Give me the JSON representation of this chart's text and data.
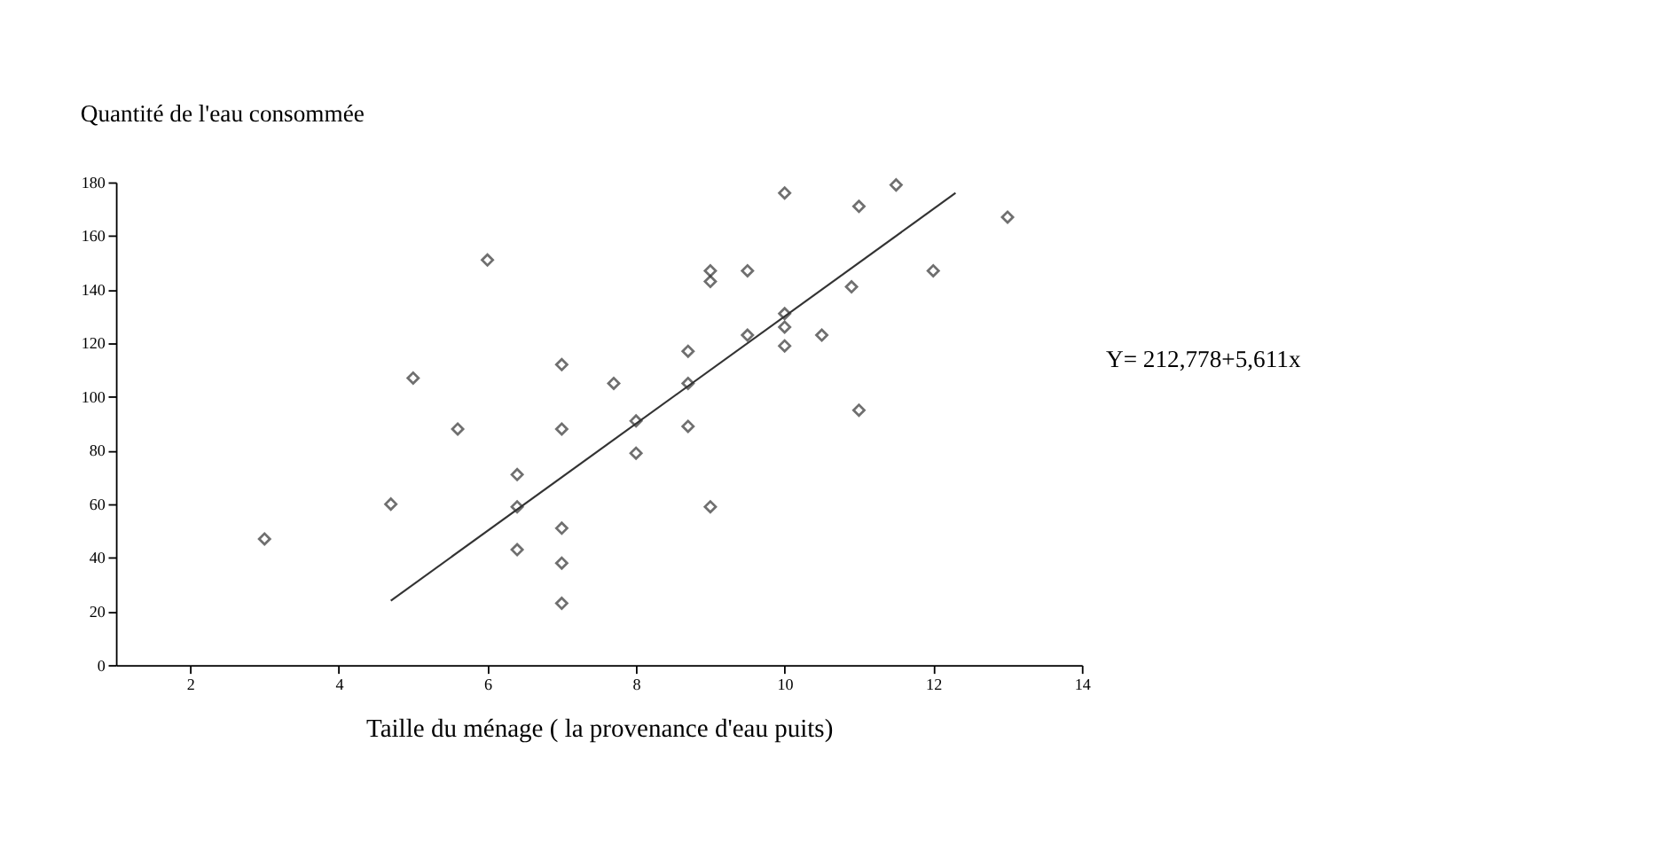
{
  "chart_data": {
    "type": "scatter",
    "title": "Quantité de l'eau consommée",
    "xlabel": "Taille du ménage ( la provenance d'eau puits)",
    "marker": "diamond",
    "grid": false,
    "xlim": [
      1,
      14
    ],
    "xticks": [
      2,
      4,
      6,
      8,
      10,
      12,
      14
    ],
    "ylim": [
      0,
      180
    ],
    "yticks": [
      0,
      20,
      40,
      60,
      80,
      100,
      120,
      140,
      160,
      180
    ],
    "series": [
      {
        "color": "#333333",
        "x": [
          3,
          4.7,
          5,
          5.6,
          6,
          6.4,
          6.4,
          6.4,
          7,
          7,
          7,
          7,
          7,
          7.7,
          8,
          8,
          8.7,
          8.7,
          8.7,
          9,
          9,
          9,
          9.5,
          9.5,
          10,
          10,
          10,
          10,
          10.5,
          10.9,
          11,
          11,
          11.5,
          12,
          13
        ],
        "values": [
          47,
          60,
          107,
          88,
          151,
          71,
          59,
          43,
          112,
          88,
          51,
          38,
          23,
          105,
          91,
          79,
          117,
          105,
          89,
          147,
          143,
          59,
          147,
          123,
          176,
          131,
          126,
          119,
          123,
          141,
          171,
          95,
          179,
          147,
          167
        ]
      },
      {
        "type": "line",
        "marker": "none",
        "color": "#333333",
        "x": [
          4.7,
          12.3
        ],
        "values": [
          24,
          176
        ]
      }
    ],
    "annotations": [
      "Y= 212,778+5,611x"
    ]
  }
}
